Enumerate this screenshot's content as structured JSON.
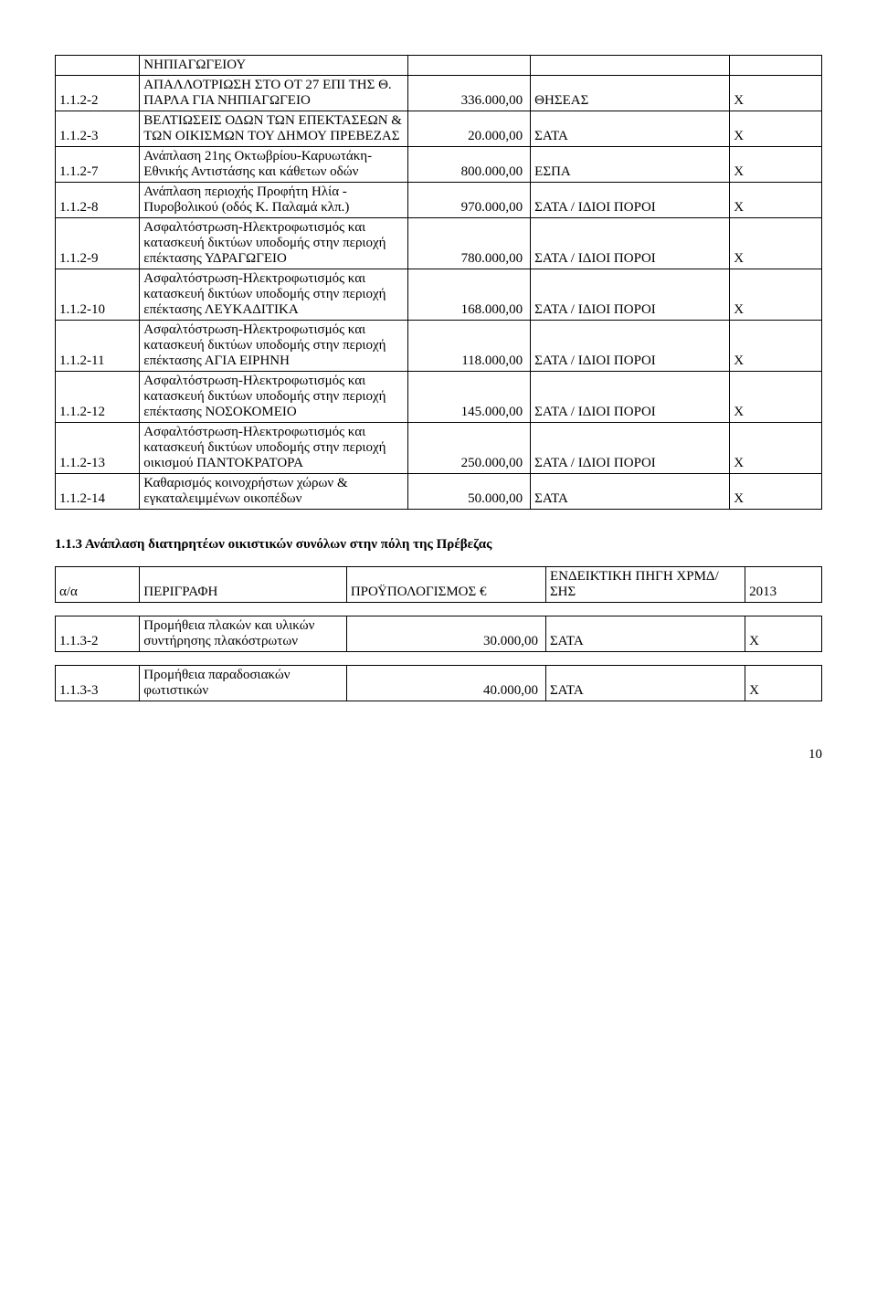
{
  "table1": {
    "rows": [
      {
        "id": "",
        "desc": "ΝΗΠΙΑΓΩΓΕΙΟΥ",
        "amount": "",
        "source": "",
        "mark": ""
      },
      {
        "id": "1.1.2-2",
        "desc": "ΑΠΑΛΛΟΤΡΙΩΣΗ ΣΤΟ ΟΤ 27 ΕΠΙ ΤΗΣ Θ. ΠΑΡΛΑ ΓΙΑ ΝΗΠΙΑΓΩΓΕΙΟ",
        "amount": "336.000,00",
        "source": "ΘΗΣΕΑΣ",
        "mark": "X"
      },
      {
        "id": "1.1.2-3",
        "desc": "ΒΕΛΤΙΩΣΕΙΣ ΟΔΩΝ ΤΩΝ ΕΠΕΚΤΑΣΕΩΝ & ΤΩΝ ΟΙΚΙΣΜΩΝ ΤΟΥ ΔΗΜΟΥ ΠΡΕΒΕΖΑΣ",
        "amount": "20.000,00",
        "source": "ΣΑΤΑ",
        "mark": "X"
      },
      {
        "id": "1.1.2-7",
        "desc": "Ανάπλαση 21ης Οκτωβρίου-Καρυωτάκη-Εθνικής Αντιστάσης και κάθετων οδών",
        "amount": "800.000,00",
        "source": "ΕΣΠΑ",
        "mark": "X"
      },
      {
        "id": "1.1.2-8",
        "desc": "Ανάπλαση περιοχής Προφήτη Ηλία - Πυροβολικού (οδός Κ. Παλαμά κλπ.)",
        "amount": "970.000,00",
        "source": "ΣΑΤΑ / ΙΔΙΟΙ ΠΟΡΟΙ",
        "mark": "X"
      },
      {
        "id": "1.1.2-9",
        "desc": "Ασφαλτόστρωση-Ηλεκτροφωτισμός και κατασκευή δικτύων υποδομής στην περιοχή επέκτασης ΥΔΡΑΓΩΓΕΙΟ",
        "amount": "780.000,00",
        "source": "ΣΑΤΑ / ΙΔΙΟΙ ΠΟΡΟΙ",
        "mark": "X"
      },
      {
        "id": "1.1.2-10",
        "desc": "Ασφαλτόστρωση-Ηλεκτροφωτισμός και κατασκευή δικτύων υποδομής στην περιοχή επέκτασης ΛΕΥΚΑΔΙΤΙΚΑ",
        "amount": "168.000,00",
        "source": "ΣΑΤΑ / ΙΔΙΟΙ ΠΟΡΟΙ",
        "mark": "X"
      },
      {
        "id": "1.1.2-11",
        "desc": "Ασφαλτόστρωση-Ηλεκτροφωτισμός και κατασκευή δικτύων υποδομής στην περιοχή επέκτασης ΑΓΙΑ ΕΙΡΗΝΗ",
        "amount": "118.000,00",
        "source": "ΣΑΤΑ / ΙΔΙΟΙ ΠΟΡΟΙ",
        "mark": "X"
      },
      {
        "id": "1.1.2-12",
        "desc": "Ασφαλτόστρωση-Ηλεκτροφωτισμός και κατασκευή δικτύων υποδομής στην περιοχή επέκτασης ΝΟΣΟΚΟΜΕΙΟ",
        "amount": "145.000,00",
        "source": "ΣΑΤΑ / ΙΔΙΟΙ ΠΟΡΟΙ",
        "mark": "X"
      },
      {
        "id": "1.1.2-13",
        "desc": "Ασφαλτόστρωση-Ηλεκτροφωτισμός και κατασκευή δικτύων υποδομής στην περιοχή οικισμού ΠΑΝΤΟΚΡΑΤΟΡΑ",
        "amount": "250.000,00",
        "source": "ΣΑΤΑ / ΙΔΙΟΙ ΠΟΡΟΙ",
        "mark": "X"
      },
      {
        "id": "1.1.2-14",
        "desc": "Καθαρισμός κοινοχρήστων χώρων & εγκαταλειμμένων οικοπέδων",
        "amount": "50.000,00",
        "source": "ΣΑΤΑ",
        "mark": "X"
      }
    ]
  },
  "section_heading": "1.1.3 Ανάπλαση διατηρητέων οικιστικών συνόλων στην πόλη της Πρέβεζας",
  "table2": {
    "header": {
      "id": "α/α",
      "desc": "ΠΕΡΙΓΡΑΦΗ",
      "amount": "ΠΡΟΫΠΟΛΟΓΙΣΜΟΣ €",
      "source": "ΕΝΔΕΙΚΤΙΚΗ ΠΗΓΗ ΧΡΜΔ/ΣΗΣ",
      "mark": "2013"
    },
    "rows": [
      {
        "id": "1.1.3-2",
        "desc": "Προμήθεια πλακών και υλικών συντήρησης πλακόστρωτων",
        "amount": "30.000,00",
        "source": "ΣΑΤΑ",
        "mark": "X"
      },
      {
        "id": "1.1.3-3",
        "desc": "Προμήθεια παραδοσιακών φωτιστικών",
        "amount": "40.000,00",
        "source": "ΣΑΤΑ",
        "mark": "X"
      }
    ]
  },
  "page_number": "10"
}
